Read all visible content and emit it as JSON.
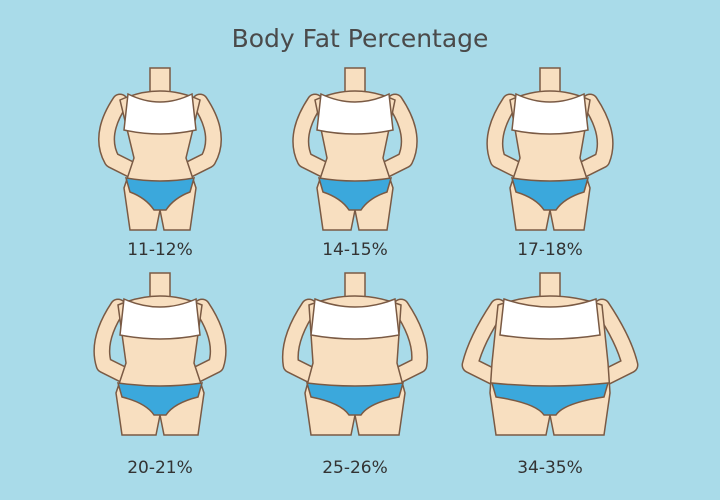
{
  "title": "Body Fat Percentage",
  "panels": [
    {
      "label": "11-12%"
    },
    {
      "label": "14-15%"
    },
    {
      "label": "17-18%"
    },
    {
      "label": "20-21%"
    },
    {
      "label": "25-26%"
    },
    {
      "label": "34-35%"
    }
  ]
}
